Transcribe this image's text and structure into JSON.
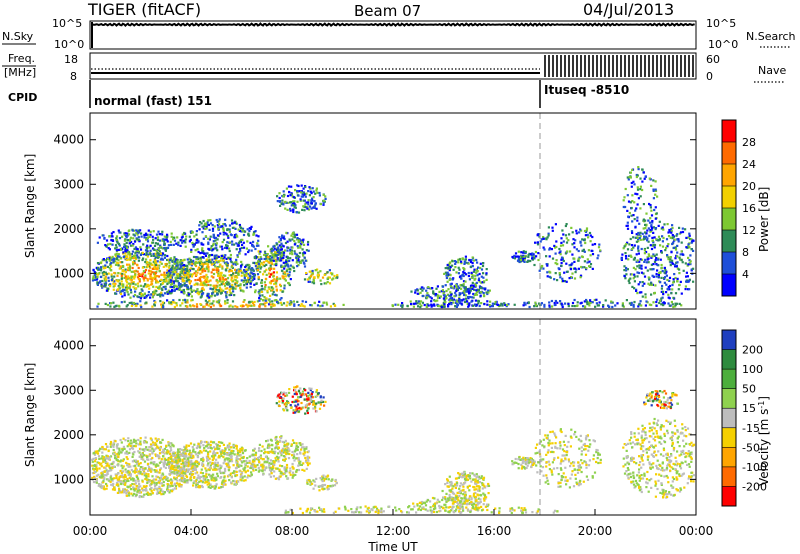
{
  "header": {
    "title": "TIGER (fitACF)",
    "beam": "Beam 07",
    "date": "04/Jul/2013"
  },
  "top_panels": {
    "nsky": {
      "left_label": "N.Sky",
      "left_ticks": [
        "10^5",
        "10^0"
      ],
      "right_ticks": [
        "10^5",
        "10^0"
      ],
      "right_label": "N.Search"
    },
    "freq": {
      "left_label_1": "Freq.",
      "left_label_2": "[MHz]",
      "left_ticks": [
        "18",
        "8"
      ],
      "right_ticks": [
        "60",
        "0"
      ],
      "right_label": "Nave"
    },
    "cpid": {
      "label": "CPID",
      "segments": [
        {
          "text": "normal (fast) 151",
          "start_hour": 0
        },
        {
          "text": "Ituseq -8510",
          "start_hour": 18
        }
      ]
    }
  },
  "chart_data": [
    {
      "type": "heatmap",
      "name": "power",
      "ylabel": "Slant Range [km]",
      "ylim": [
        200,
        4600
      ],
      "yticks": [
        1000,
        2000,
        3000,
        4000
      ],
      "x_range_hours": [
        0,
        24
      ],
      "colorbar": {
        "label": "Power [dB]",
        "ticks": [
          "28",
          "24",
          "20",
          "16",
          "12",
          "8",
          "4"
        ],
        "colors": [
          "#ff0000",
          "#ff6a00",
          "#ffa500",
          "#f2d000",
          "#7dc832",
          "#2e8b57",
          "#1e4fd8",
          "#0000ff"
        ]
      }
    },
    {
      "type": "heatmap",
      "name": "velocity",
      "ylabel": "Slant Range [km]",
      "ylim": [
        200,
        4600
      ],
      "yticks": [
        1000,
        2000,
        3000,
        4000
      ],
      "x_range_hours": [
        0,
        24
      ],
      "xlabel": "Time UT",
      "xticks": [
        "00:00",
        "04:00",
        "08:00",
        "12:00",
        "16:00",
        "20:00",
        "00:00"
      ],
      "colorbar": {
        "label": "Velocity [m s",
        "label_sup": "-1",
        "label_end": "]",
        "ticks": [
          "200",
          "100",
          "50",
          "15",
          "-15",
          "-50",
          "-100",
          "-200"
        ],
        "colors": [
          "#1f3fbf",
          "#2e8b3e",
          "#4cae3c",
          "#8fd14f",
          "#bdbdbd",
          "#f5d000",
          "#ffa500",
          "#ff6a00",
          "#ff0000"
        ]
      }
    }
  ]
}
